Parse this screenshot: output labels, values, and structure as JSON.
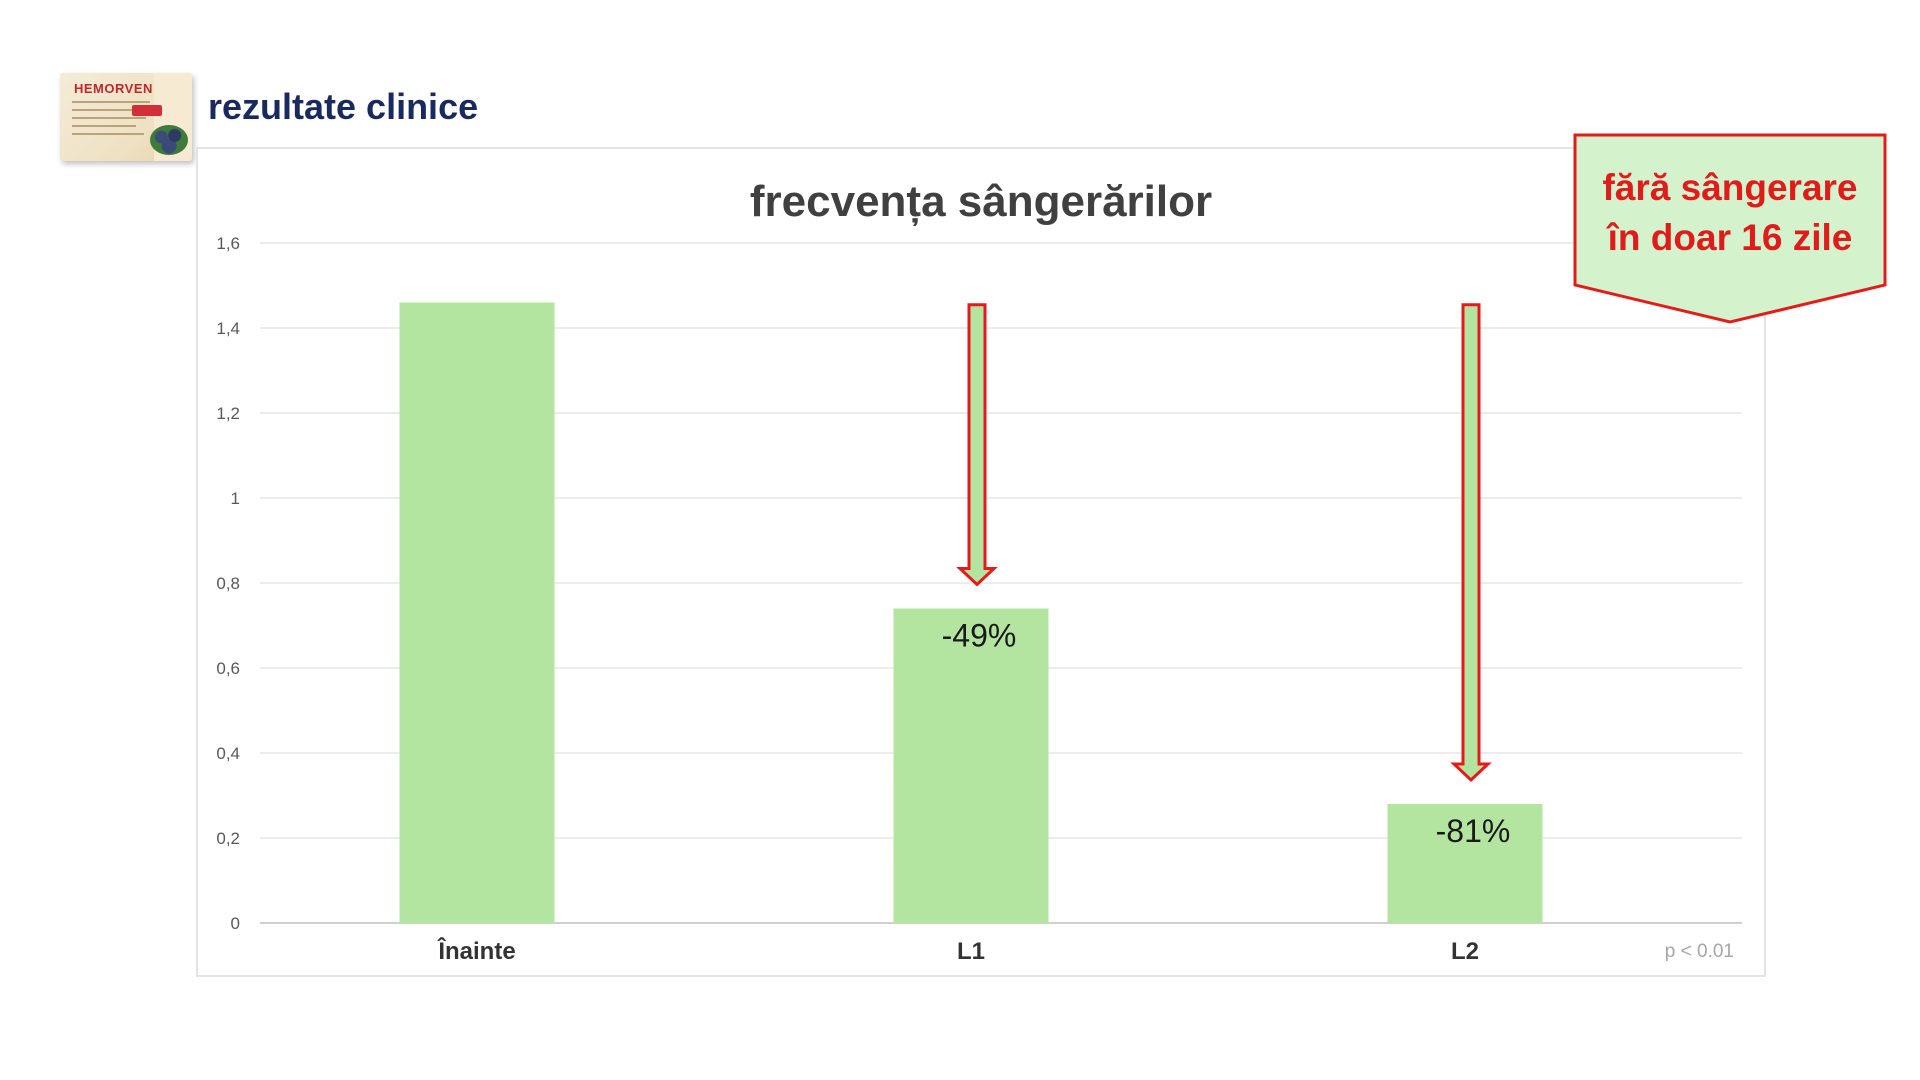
{
  "header": {
    "product_brand": "HEMORVEN",
    "title": "rezultate clinice"
  },
  "colors": {
    "bar": "#b3e5a1",
    "arrow_fill": "#b3e5a1",
    "arrow_stroke": "#e51b1b",
    "callout_fill": "#d4f2cc",
    "callout_stroke": "#e51b1b",
    "callout_text": "#e01b1b",
    "heading": "#1b2a5e"
  },
  "chart_data": {
    "type": "bar",
    "title": "frecvența sângerărilor",
    "categories": [
      "Înainte",
      "L1",
      "L2"
    ],
    "values": [
      1.46,
      0.74,
      0.28
    ],
    "data_labels": [
      "",
      "-49%",
      "-81%"
    ],
    "ylim": [
      0,
      1.6
    ],
    "yticks": [
      "0",
      "0,2",
      "0,4",
      "0,6",
      "0,8",
      "1",
      "1,2",
      "1,4",
      "1,6"
    ],
    "grid": true,
    "legend": "none",
    "annotation": "p < 0.01",
    "arrows_on": [
      "L1",
      "L2"
    ]
  },
  "callout": {
    "line1": "fără sângerare",
    "line2": "în doar 16 zile"
  }
}
